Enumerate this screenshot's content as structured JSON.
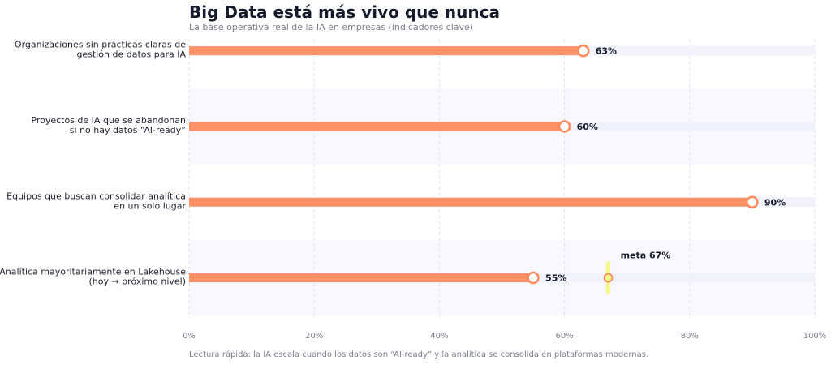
{
  "chart_data": {
    "type": "bar",
    "orientation": "horizontal",
    "style": "lollipop",
    "title": "Big Data está más vivo que nunca",
    "subtitle": "La base operativa real de la IA en empresas (indicadores clave)",
    "footer": "Lectura rápida: la IA escala cuando los datos son “AI-ready” y la analítica se consolida en plataformas modernas.",
    "categories": [
      [
        "Organizaciones sin prácticas claras de",
        "gestión de datos para IA"
      ],
      [
        "Proyectos de IA que se abandonan",
        "si no hay datos “AI-ready”"
      ],
      [
        "Equipos que buscan consolidar analítica",
        "en un solo lugar"
      ],
      [
        "Analítica mayoritariamente en Lakehouse",
        "(hoy → próximo nivel)"
      ]
    ],
    "values": [
      63,
      60,
      90,
      55
    ],
    "value_labels": [
      "63%",
      "60%",
      "90%",
      "55%"
    ],
    "target": {
      "category_index": 3,
      "value": 67,
      "label": "meta 67%"
    },
    "xlim": [
      0,
      100
    ],
    "xticks": [
      0,
      20,
      40,
      60,
      80,
      100
    ],
    "xtick_labels": [
      "0%",
      "20%",
      "40%",
      "60%",
      "80%",
      "100%"
    ],
    "grid": true,
    "colors": {
      "bar": "#ff9166",
      "marker_edge": "#ff8a5c",
      "target": "#f7f78a",
      "band": "#f8f8fe",
      "track": "#f1f2fb",
      "grid": "#e2e3ea"
    }
  }
}
